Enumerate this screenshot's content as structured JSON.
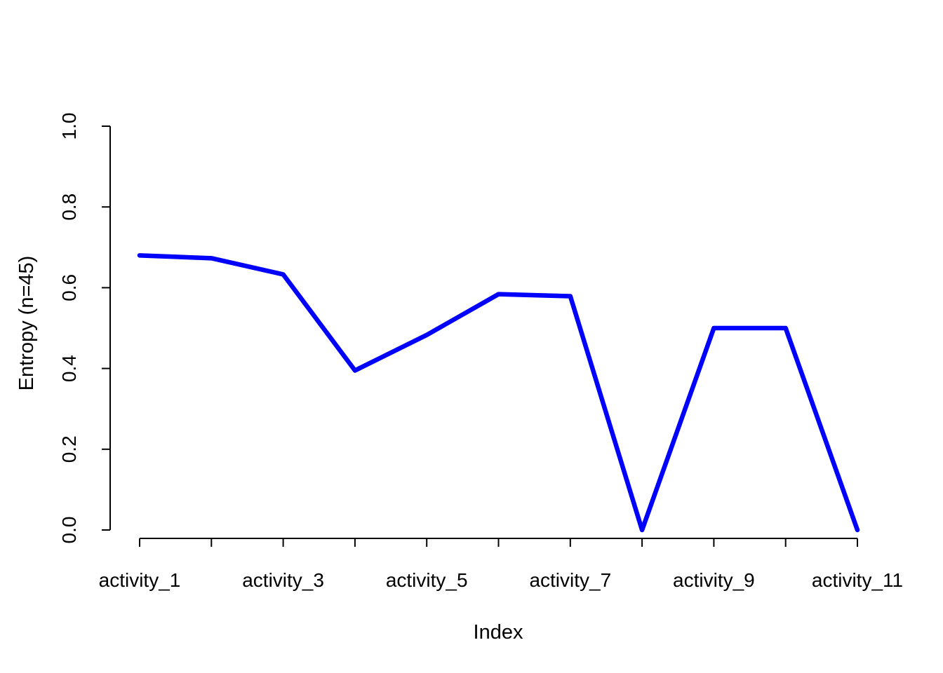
{
  "chart_data": {
    "type": "line",
    "title": "",
    "xlabel": "Index",
    "ylabel": "Entropy (n=45)",
    "x": [
      1,
      2,
      3,
      4,
      5,
      6,
      7,
      8,
      9,
      10,
      11
    ],
    "x_tick_labels": [
      "activity_1",
      "activity_3",
      "activity_5",
      "activity_7",
      "activity_9",
      "activity_11"
    ],
    "x_tick_label_positions": [
      1,
      3,
      5,
      7,
      9,
      11
    ],
    "ylim": [
      0,
      1
    ],
    "y_ticks": [
      0.0,
      0.2,
      0.4,
      0.6,
      0.8,
      1.0
    ],
    "y_tick_labels": [
      "0.0",
      "0.2",
      "0.4",
      "0.6",
      "0.8",
      "1.0"
    ],
    "grid": false,
    "series": [
      {
        "color": "#0000ff",
        "values": [
          0.68,
          0.673,
          0.633,
          0.395,
          0.483,
          0.584,
          0.579,
          0.0,
          0.5,
          0.5,
          0.0
        ]
      }
    ]
  }
}
